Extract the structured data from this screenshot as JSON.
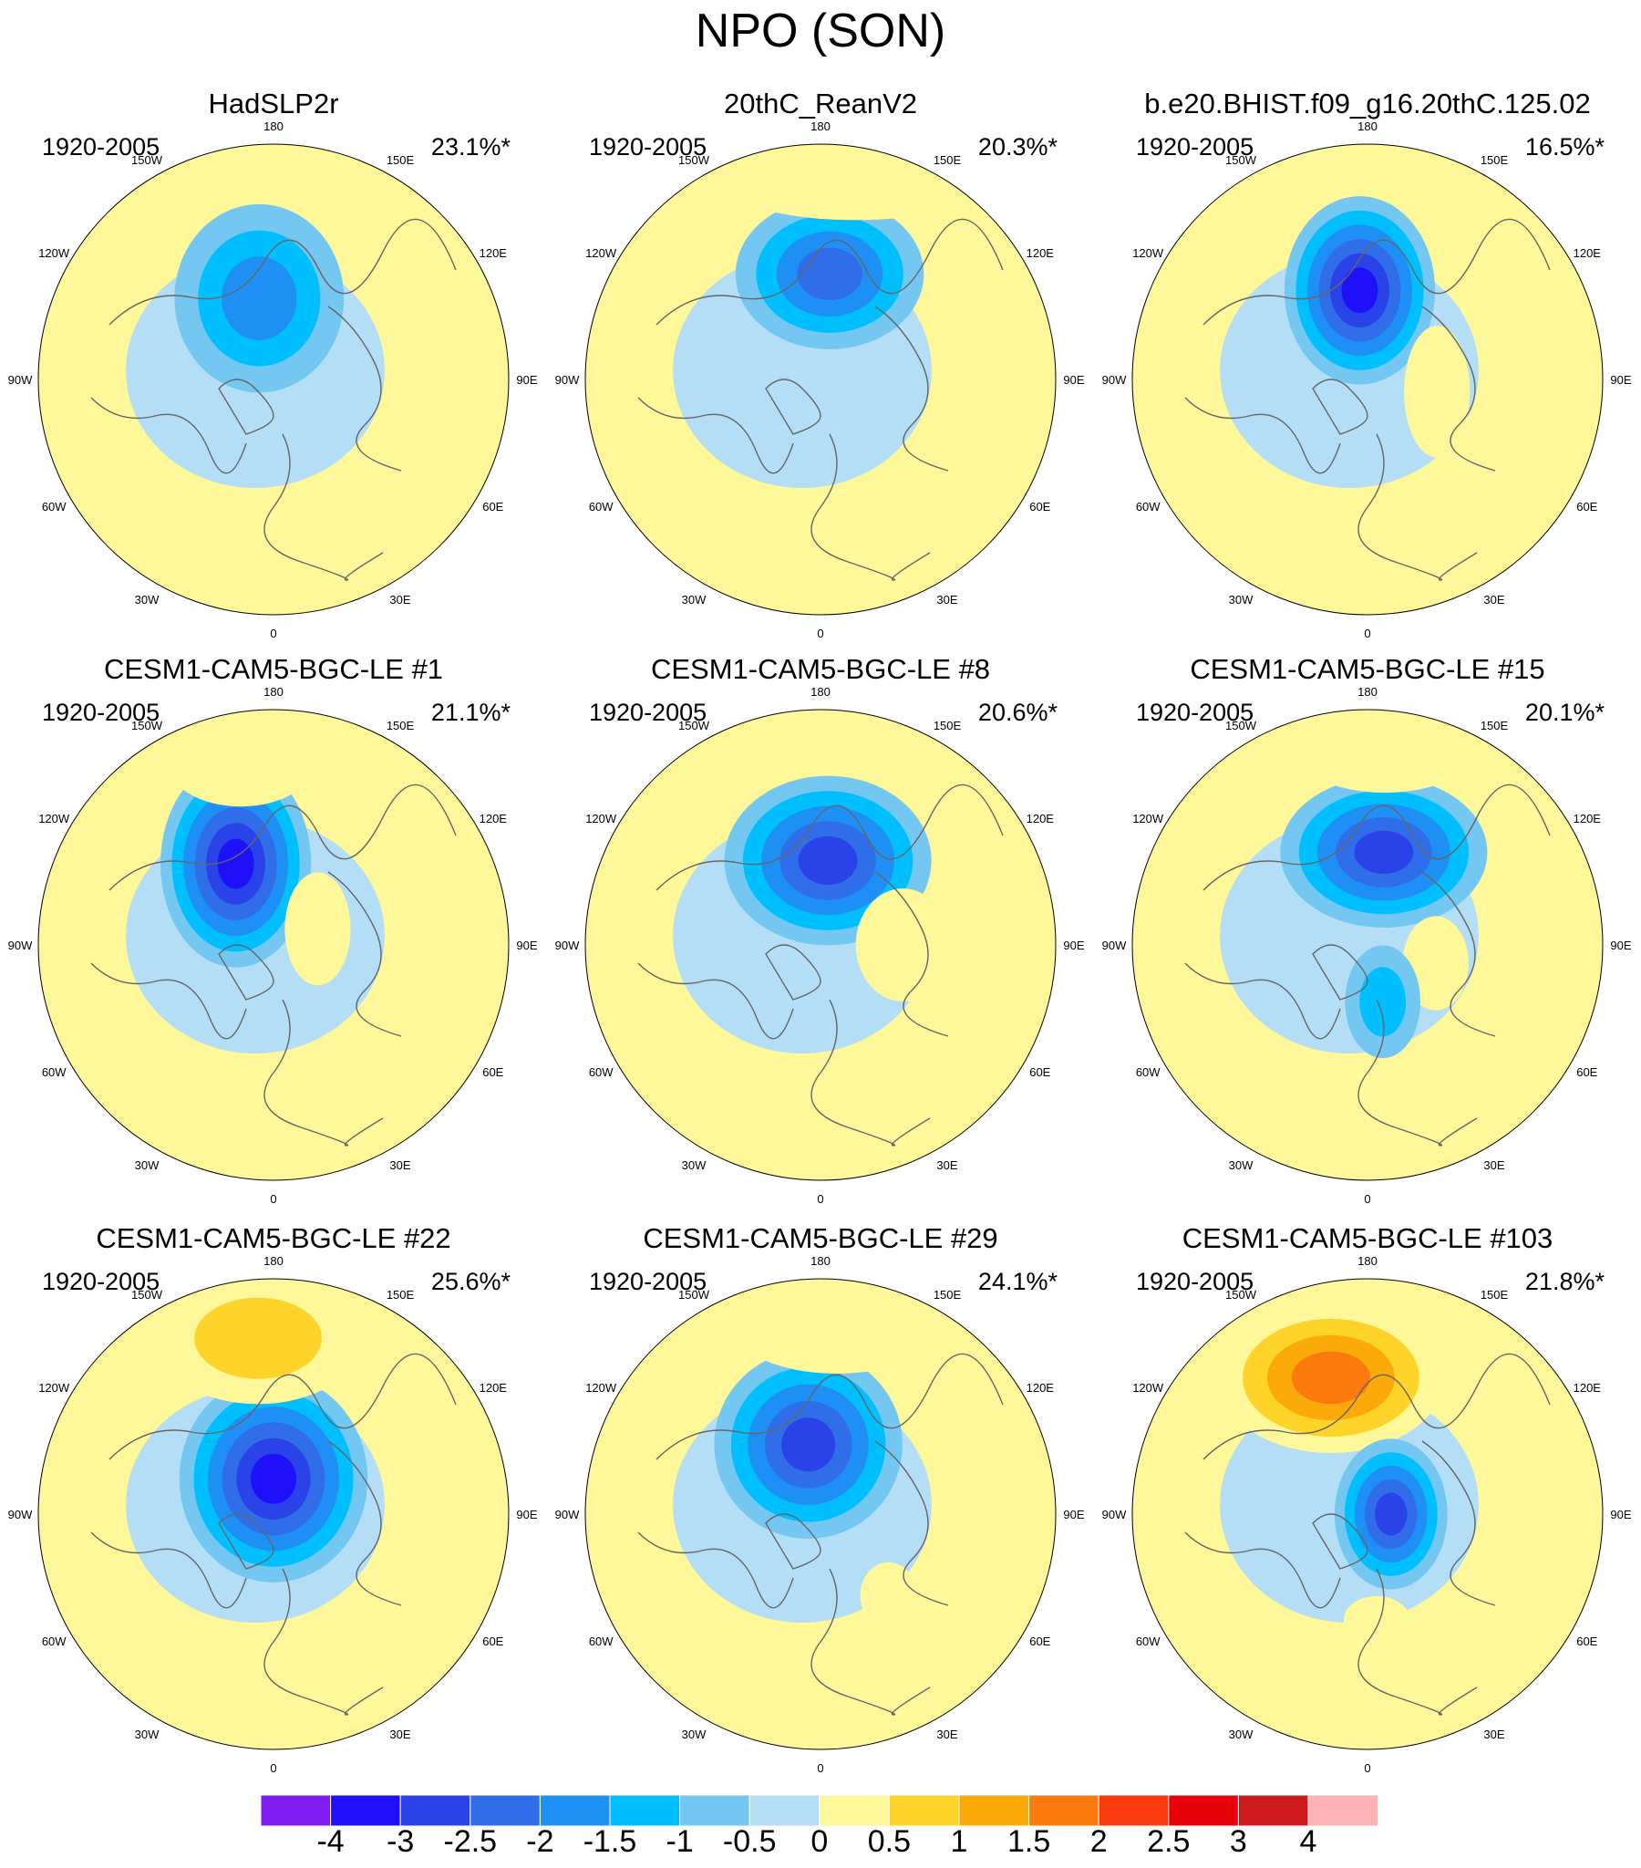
{
  "figure_title": "NPO (SON)",
  "chart_data": {
    "type": "map",
    "projection": "north-polar-stereographic",
    "longitude_labels": [
      "180",
      "150W",
      "150E",
      "120W",
      "120E",
      "90W",
      "90E",
      "60W",
      "60E",
      "30W",
      "30E",
      "0"
    ],
    "panels": [
      {
        "title": "HadSLP2r",
        "period": "1920-2005",
        "pct": "23.1%*",
        "anomalies": [
          {
            "lon": -170,
            "r": 0.35,
            "rx": 0.18,
            "ry": 0.2,
            "value": -1.5
          }
        ]
      },
      {
        "title": "20thC_ReanV2",
        "period": "1920-2005",
        "pct": "20.3%*",
        "anomalies": [
          {
            "lon": 175,
            "r": 0.45,
            "rx": 0.2,
            "ry": 0.16,
            "value": -2
          },
          {
            "lon": 170,
            "r": 0.85,
            "rx": 0.28,
            "ry": 0.08,
            "value": 0.5
          }
        ]
      },
      {
        "title": "b.e20.BHIST.f09_g16.20thC.125.02",
        "period": "1920-2005",
        "pct": "16.5%*",
        "anomalies": [
          {
            "lon": -175,
            "r": 0.38,
            "rx": 0.16,
            "ry": 0.2,
            "value": -3
          },
          {
            "lon": 80,
            "r": 0.3,
            "rx": 0.07,
            "ry": 0.14,
            "value": 0.5
          }
        ]
      },
      {
        "title": "CESM1-CAM5-BGC-LE #1",
        "period": "1920-2005",
        "pct": "21.1%*",
        "anomalies": [
          {
            "lon": -155,
            "r": 0.38,
            "rx": 0.16,
            "ry": 0.22,
            "value": -3
          },
          {
            "lon": -170,
            "r": 0.8,
            "rx": 0.16,
            "ry": 0.1,
            "value": 0.5
          },
          {
            "lon": 110,
            "r": 0.2,
            "rx": 0.07,
            "ry": 0.12,
            "value": 0.5
          }
        ]
      },
      {
        "title": "CESM1-CAM5-BGC-LE #8",
        "period": "1920-2005",
        "pct": "20.6%*",
        "anomalies": [
          {
            "lon": 175,
            "r": 0.36,
            "rx": 0.22,
            "ry": 0.18,
            "value": -2.5
          },
          {
            "lon": 90,
            "r": 0.35,
            "rx": 0.1,
            "ry": 0.12,
            "value": 0.5
          }
        ]
      },
      {
        "title": "CESM1-CAM5-BGC-LE #15",
        "period": "1920-2005",
        "pct": "20.1%*",
        "anomalies": [
          {
            "lon": 170,
            "r": 0.4,
            "rx": 0.22,
            "ry": 0.16,
            "value": -2.5
          },
          {
            "lon": 175,
            "r": 0.85,
            "rx": 0.2,
            "ry": 0.1,
            "value": 0.5
          },
          {
            "lon": 75,
            "r": 0.3,
            "rx": 0.07,
            "ry": 0.1,
            "value": 0.5
          },
          {
            "lon": 15,
            "r": 0.25,
            "rx": 0.08,
            "ry": 0.12,
            "value": -1
          }
        ]
      },
      {
        "title": "CESM1-CAM5-BGC-LE #22",
        "period": "1920-2005",
        "pct": "25.6%*",
        "anomalies": [
          {
            "lon": 180,
            "r": 0.15,
            "rx": 0.2,
            "ry": 0.22,
            "value": -3
          },
          {
            "lon": -175,
            "r": 0.75,
            "rx": 0.22,
            "ry": 0.14,
            "value": 1
          },
          {
            "lon": -10,
            "r": 0.6,
            "rx": 0.06,
            "ry": 0.05,
            "value": 0.5
          }
        ]
      },
      {
        "title": "CESM1-CAM5-BGC-LE #29",
        "period": "1920-2005",
        "pct": "24.1%*",
        "anomalies": [
          {
            "lon": -170,
            "r": 0.3,
            "rx": 0.2,
            "ry": 0.2,
            "value": -2.5
          },
          {
            "lon": 175,
            "r": 0.8,
            "rx": 0.22,
            "ry": 0.1,
            "value": 0.5
          },
          {
            "lon": 40,
            "r": 0.45,
            "rx": 0.06,
            "ry": 0.07,
            "value": 0.5
          }
        ]
      },
      {
        "title": "CESM1-CAM5-BGC-LE #103",
        "period": "1920-2005",
        "pct": "21.8%*",
        "anomalies": [
          {
            "lon": -165,
            "r": 0.6,
            "rx": 0.24,
            "ry": 0.16,
            "value": 2
          },
          {
            "lon": 90,
            "r": 0.1,
            "rx": 0.12,
            "ry": 0.16,
            "value": -2.5
          },
          {
            "lon": 5,
            "r": 0.45,
            "rx": 0.07,
            "ry": 0.05,
            "value": 0.5
          }
        ]
      }
    ],
    "colorbar": {
      "levels": [
        "-4",
        "-3",
        "-2.5",
        "-2",
        "-1.5",
        "-1",
        "-0.5",
        "0",
        "0.5",
        "1",
        "1.5",
        "2",
        "2.5",
        "3",
        "4"
      ],
      "colors": [
        "#7f1cf2",
        "#1e10f8",
        "#2a43e8",
        "#2f6ee8",
        "#1e90f5",
        "#00bfff",
        "#73c7f0",
        "#b3def6",
        "#fff89a",
        "#fed42a",
        "#fcaa0a",
        "#fa7a0d",
        "#fb3a0e",
        "#e8000a",
        "#ce1a1c",
        "#fcb3b3"
      ]
    }
  }
}
